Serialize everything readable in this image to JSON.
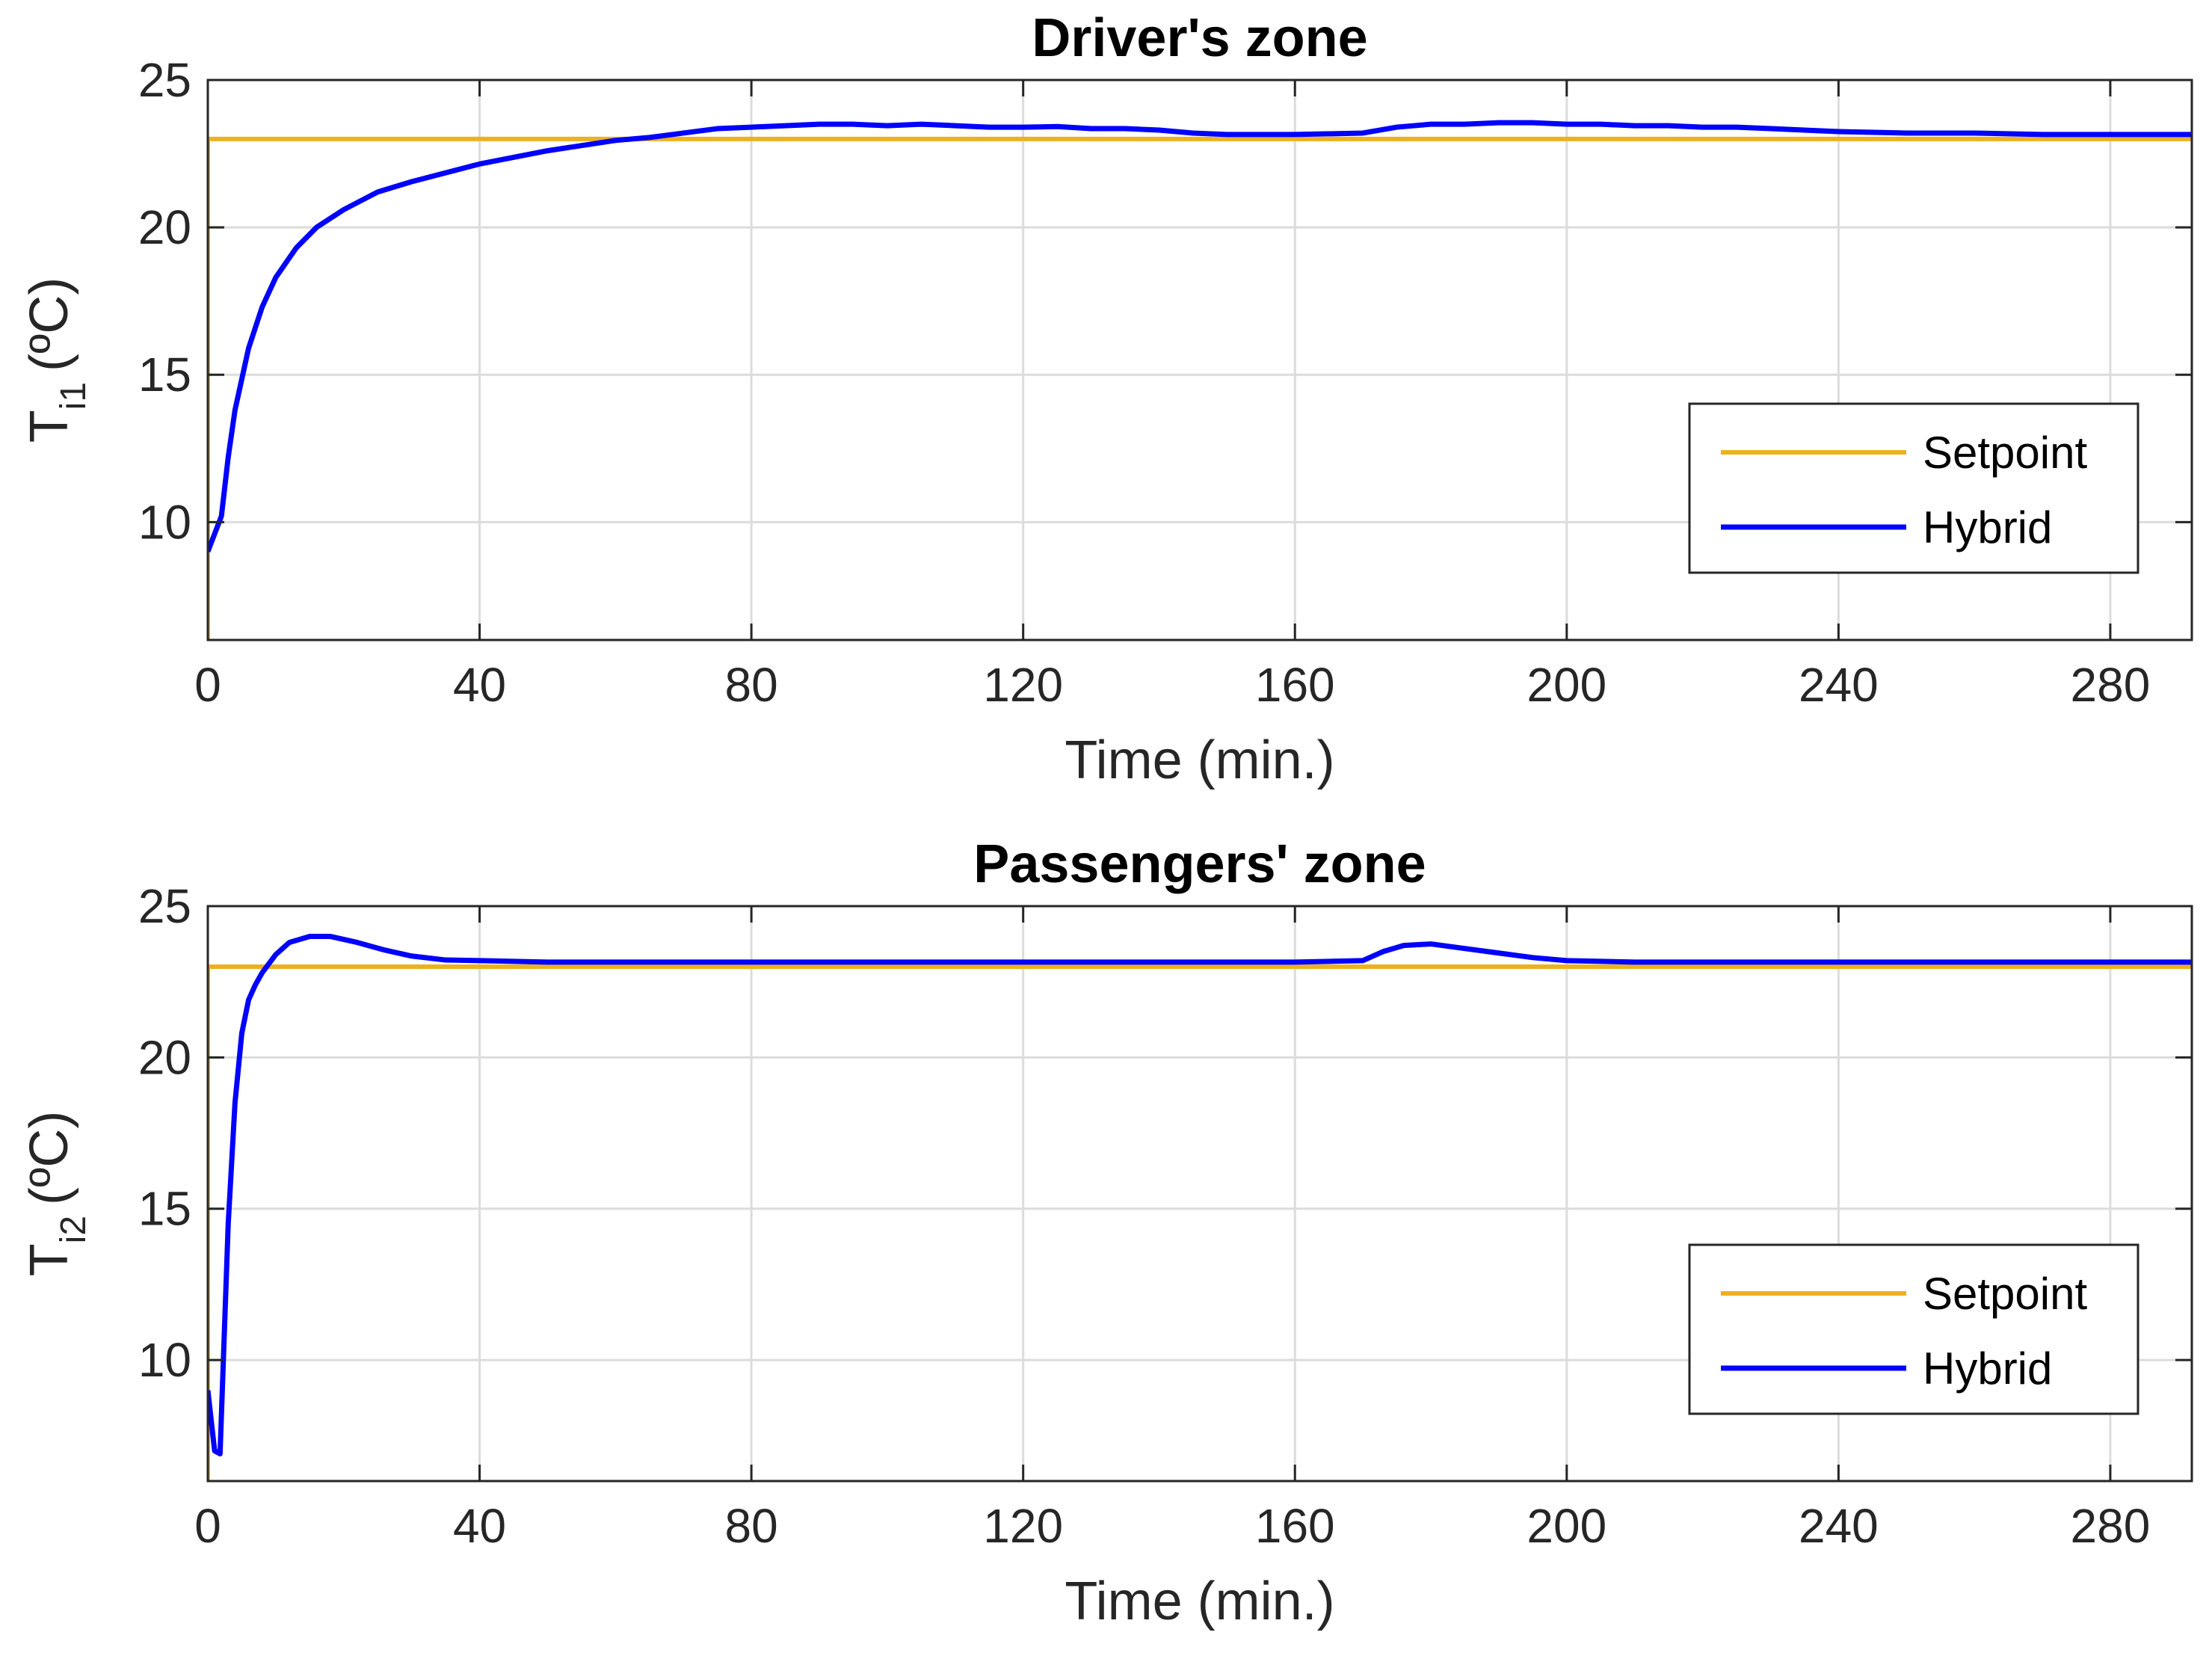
{
  "chart_data": [
    {
      "type": "line",
      "title": "Driver's zone",
      "xlabel": "Time (min.)",
      "ylabel_main": "T",
      "ylabel_sub": "i1",
      "ylabel_unit": "(ºC)",
      "xlim": [
        0,
        292
      ],
      "ylim": [
        6,
        25
      ],
      "xticks": [
        "0",
        "40",
        "80",
        "120",
        "160",
        "200",
        "240",
        "280"
      ],
      "yticks": [
        "10",
        "15",
        "20",
        "25"
      ],
      "legend_position": "bottom-right",
      "series": [
        {
          "name": "Setpoint",
          "color": "#EDB120",
          "x": [
            0,
            0,
            292
          ],
          "y": [
            6,
            23,
            23
          ]
        },
        {
          "name": "Hybrid",
          "color": "#0000FF",
          "x": [
            0,
            1,
            2,
            3,
            4,
            6,
            8,
            10,
            13,
            16,
            20,
            25,
            30,
            40,
            50,
            60,
            65,
            70,
            75,
            80,
            85,
            90,
            95,
            100,
            105,
            110,
            115,
            120,
            125,
            130,
            135,
            140,
            145,
            150,
            160,
            170,
            175,
            180,
            185,
            190,
            195,
            200,
            205,
            210,
            215,
            220,
            225,
            230,
            240,
            250,
            260,
            270,
            280,
            292
          ],
          "y": [
            9.0,
            9.6,
            10.2,
            12.2,
            13.8,
            15.9,
            17.3,
            18.3,
            19.3,
            20.0,
            20.6,
            21.2,
            21.55,
            22.15,
            22.6,
            22.95,
            23.05,
            23.2,
            23.35,
            23.4,
            23.45,
            23.5,
            23.5,
            23.45,
            23.5,
            23.45,
            23.4,
            23.4,
            23.42,
            23.35,
            23.35,
            23.3,
            23.2,
            23.15,
            23.15,
            23.2,
            23.4,
            23.5,
            23.5,
            23.55,
            23.55,
            23.5,
            23.5,
            23.45,
            23.45,
            23.4,
            23.4,
            23.35,
            23.25,
            23.2,
            23.2,
            23.15,
            23.15,
            23.15
          ]
        }
      ]
    },
    {
      "type": "line",
      "title": "Passengers' zone",
      "xlabel": "Time (min.)",
      "ylabel_main": "T",
      "ylabel_sub": "i2",
      "ylabel_unit": "(ºC)",
      "xlim": [
        0,
        292
      ],
      "ylim": [
        6,
        25
      ],
      "xticks": [
        "0",
        "40",
        "80",
        "120",
        "160",
        "200",
        "240",
        "280"
      ],
      "yticks": [
        "10",
        "15",
        "20",
        "25"
      ],
      "legend_position": "bottom-right",
      "series": [
        {
          "name": "Setpoint",
          "color": "#EDB120",
          "x": [
            0,
            0,
            292
          ],
          "y": [
            6,
            23,
            23
          ]
        },
        {
          "name": "Hybrid",
          "color": "#0000FF",
          "x": [
            0,
            1,
            1.8,
            3,
            4,
            5,
            6,
            7,
            8,
            10,
            12,
            15,
            18,
            22,
            26,
            30,
            35,
            40,
            50,
            60,
            80,
            120,
            160,
            170,
            173,
            176,
            180,
            185,
            190,
            195,
            200,
            210,
            240,
            292
          ],
          "y": [
            9.0,
            7.0,
            6.9,
            14.5,
            18.5,
            20.8,
            21.9,
            22.4,
            22.8,
            23.4,
            23.8,
            24.0,
            24.0,
            23.8,
            23.55,
            23.35,
            23.22,
            23.2,
            23.15,
            23.15,
            23.15,
            23.15,
            23.15,
            23.2,
            23.5,
            23.7,
            23.75,
            23.6,
            23.45,
            23.3,
            23.2,
            23.15,
            23.15,
            23.15
          ]
        }
      ]
    }
  ]
}
